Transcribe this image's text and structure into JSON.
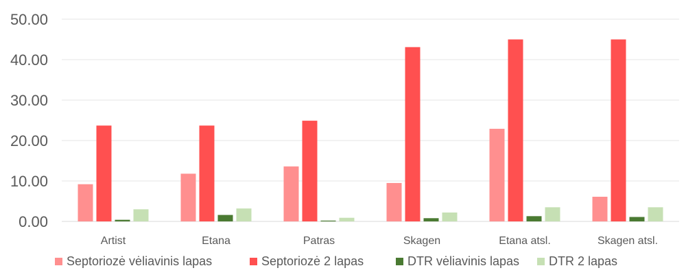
{
  "chart_data": {
    "type": "bar",
    "categories": [
      "Artist",
      "Etana",
      "Patras",
      "Skagen",
      "Etana atsl.",
      "Skagen atsl."
    ],
    "series": [
      {
        "name": "Septoriozė vėliavinis lapas",
        "color": "#ff8f8f",
        "values": [
          9.2,
          11.8,
          13.6,
          9.5,
          22.9,
          6.1
        ]
      },
      {
        "name": "Septoriozė 2 lapas",
        "color": "#ff5050",
        "values": [
          23.7,
          23.7,
          24.9,
          43.1,
          45.0,
          45.0
        ]
      },
      {
        "name": "DTR vėliavinis lapas",
        "color": "#4a7a32",
        "values": [
          0.4,
          1.6,
          0.2,
          0.8,
          1.3,
          1.1
        ]
      },
      {
        "name": "DTR 2 lapas",
        "color": "#c6e0b4",
        "values": [
          3.0,
          3.2,
          0.9,
          2.2,
          3.5,
          3.5
        ]
      }
    ],
    "yticks": [
      "0.00",
      "10.00",
      "20.00",
      "30.00",
      "40.00",
      "50.00"
    ],
    "ylim": [
      0,
      50
    ],
    "grid": true,
    "legend_position": "bottom",
    "title": "",
    "xlabel": "",
    "ylabel": ""
  }
}
